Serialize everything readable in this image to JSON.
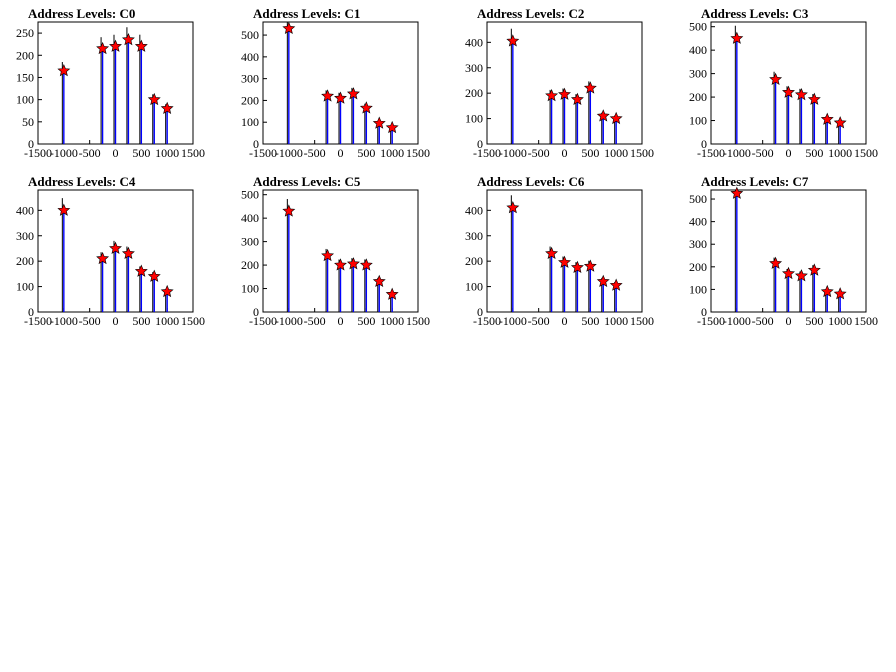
{
  "page": {
    "background": "#ffffff",
    "line_color": "#0000ff",
    "marker_color": "#ff0000"
  },
  "chart_data": [
    {
      "type": "histogram",
      "title": "Address Levels: C0",
      "xlim": [
        -1500,
        1500
      ],
      "ylim": [
        0,
        275
      ],
      "xticks": [
        "-1500",
        "-1000",
        "-500",
        "0",
        "500",
        "1000",
        "1500"
      ],
      "yticks": [
        "0",
        "50",
        "100",
        "150",
        "200",
        "250"
      ],
      "ytick_values": [
        0,
        50,
        100,
        150,
        200,
        250
      ],
      "peaks": [
        {
          "x": -1000,
          "y": 165
        },
        {
          "x": -250,
          "y": 215
        },
        {
          "x": 0,
          "y": 220
        },
        {
          "x": 250,
          "y": 235
        },
        {
          "x": 500,
          "y": 220
        },
        {
          "x": 750,
          "y": 100
        },
        {
          "x": 1000,
          "y": 80
        }
      ]
    },
    {
      "type": "histogram",
      "title": "Address Levels: C1",
      "xlim": [
        -1500,
        1500
      ],
      "ylim": [
        0,
        560
      ],
      "xticks": [
        "-1500",
        "-1000",
        "-500",
        "0",
        "500",
        "1000",
        "1500"
      ],
      "yticks": [
        "0",
        "100",
        "200",
        "300",
        "400",
        "500"
      ],
      "ytick_values": [
        0,
        100,
        200,
        300,
        400,
        500
      ],
      "peaks": [
        {
          "x": -1000,
          "y": 530
        },
        {
          "x": -250,
          "y": 220
        },
        {
          "x": 0,
          "y": 210
        },
        {
          "x": 250,
          "y": 230
        },
        {
          "x": 500,
          "y": 165
        },
        {
          "x": 750,
          "y": 95
        },
        {
          "x": 1000,
          "y": 75
        }
      ]
    },
    {
      "type": "histogram",
      "title": "Address Levels: C2",
      "xlim": [
        -1500,
        1500
      ],
      "ylim": [
        0,
        480
      ],
      "xticks": [
        "-1500",
        "-1000",
        "-500",
        "0",
        "500",
        "1000",
        "1500"
      ],
      "yticks": [
        "0",
        "100",
        "200",
        "300",
        "400"
      ],
      "ytick_values": [
        0,
        100,
        200,
        300,
        400
      ],
      "peaks": [
        {
          "x": -1000,
          "y": 405
        },
        {
          "x": -250,
          "y": 190
        },
        {
          "x": 0,
          "y": 195
        },
        {
          "x": 250,
          "y": 175
        },
        {
          "x": 500,
          "y": 220
        },
        {
          "x": 750,
          "y": 110
        },
        {
          "x": 1000,
          "y": 100
        }
      ]
    },
    {
      "type": "histogram",
      "title": "Address Levels: C3",
      "xlim": [
        -1500,
        1500
      ],
      "ylim": [
        0,
        520
      ],
      "xticks": [
        "-1500",
        "-1000",
        "-500",
        "0",
        "500",
        "1000",
        "1500"
      ],
      "yticks": [
        "0",
        "100",
        "200",
        "300",
        "400",
        "500"
      ],
      "ytick_values": [
        0,
        100,
        200,
        300,
        400,
        500
      ],
      "peaks": [
        {
          "x": -1000,
          "y": 450
        },
        {
          "x": -250,
          "y": 275
        },
        {
          "x": 0,
          "y": 220
        },
        {
          "x": 250,
          "y": 210
        },
        {
          "x": 500,
          "y": 190
        },
        {
          "x": 750,
          "y": 105
        },
        {
          "x": 1000,
          "y": 90
        }
      ]
    },
    {
      "type": "histogram",
      "title": "Address Levels: C4",
      "xlim": [
        -1500,
        1500
      ],
      "ylim": [
        0,
        480
      ],
      "xticks": [
        "-1500",
        "-1000",
        "-500",
        "0",
        "500",
        "1000",
        "1500"
      ],
      "yticks": [
        "0",
        "100",
        "200",
        "300",
        "400"
      ],
      "ytick_values": [
        0,
        100,
        200,
        300,
        400
      ],
      "peaks": [
        {
          "x": -1000,
          "y": 400
        },
        {
          "x": -250,
          "y": 210
        },
        {
          "x": 0,
          "y": 250
        },
        {
          "x": 250,
          "y": 230
        },
        {
          "x": 500,
          "y": 160
        },
        {
          "x": 750,
          "y": 140
        },
        {
          "x": 1000,
          "y": 80
        }
      ]
    },
    {
      "type": "histogram",
      "title": "Address Levels: C5",
      "xlim": [
        -1500,
        1500
      ],
      "ylim": [
        0,
        520
      ],
      "xticks": [
        "-1500",
        "-1000",
        "-500",
        "0",
        "500",
        "1000",
        "1500"
      ],
      "yticks": [
        "0",
        "100",
        "200",
        "300",
        "400",
        "500"
      ],
      "ytick_values": [
        0,
        100,
        200,
        300,
        400,
        500
      ],
      "peaks": [
        {
          "x": -1000,
          "y": 430
        },
        {
          "x": -250,
          "y": 240
        },
        {
          "x": 0,
          "y": 200
        },
        {
          "x": 250,
          "y": 205
        },
        {
          "x": 500,
          "y": 200
        },
        {
          "x": 750,
          "y": 130
        },
        {
          "x": 1000,
          "y": 75
        }
      ]
    },
    {
      "type": "histogram",
      "title": "Address Levels: C6",
      "xlim": [
        -1500,
        1500
      ],
      "ylim": [
        0,
        480
      ],
      "xticks": [
        "-1500",
        "-1000",
        "-500",
        "0",
        "500",
        "1000",
        "1500"
      ],
      "yticks": [
        "0",
        "100",
        "200",
        "300",
        "400"
      ],
      "ytick_values": [
        0,
        100,
        200,
        300,
        400
      ],
      "peaks": [
        {
          "x": -1000,
          "y": 410
        },
        {
          "x": -250,
          "y": 230
        },
        {
          "x": 0,
          "y": 195
        },
        {
          "x": 250,
          "y": 175
        },
        {
          "x": 500,
          "y": 180
        },
        {
          "x": 750,
          "y": 120
        },
        {
          "x": 1000,
          "y": 105
        }
      ]
    },
    {
      "type": "histogram",
      "title": "Address Levels: C7",
      "xlim": [
        -1500,
        1500
      ],
      "ylim": [
        0,
        540
      ],
      "xticks": [
        "-1500",
        "-1000",
        "-500",
        "0",
        "500",
        "1000",
        "1500"
      ],
      "yticks": [
        "0",
        "100",
        "200",
        "300",
        "400",
        "500"
      ],
      "ytick_values": [
        0,
        100,
        200,
        300,
        400,
        500
      ],
      "peaks": [
        {
          "x": -1000,
          "y": 525
        },
        {
          "x": -250,
          "y": 215
        },
        {
          "x": 0,
          "y": 170
        },
        {
          "x": 250,
          "y": 160
        },
        {
          "x": 500,
          "y": 185
        },
        {
          "x": 750,
          "y": 90
        },
        {
          "x": 1000,
          "y": 80
        }
      ]
    }
  ]
}
